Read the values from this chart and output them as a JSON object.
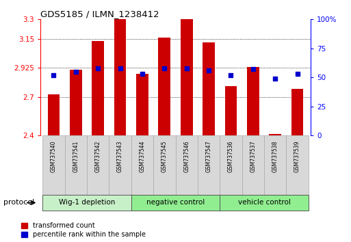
{
  "title": "GDS5185 / ILMN_1238412",
  "samples": [
    "GSM737540",
    "GSM737541",
    "GSM737542",
    "GSM737543",
    "GSM737544",
    "GSM737545",
    "GSM737546",
    "GSM737547",
    "GSM737536",
    "GSM737537",
    "GSM737538",
    "GSM737539"
  ],
  "red_values": [
    2.72,
    2.91,
    3.13,
    3.3,
    2.88,
    3.16,
    3.3,
    3.12,
    2.78,
    2.93,
    2.41,
    2.76
  ],
  "blue_values": [
    52,
    55,
    58,
    58,
    53,
    58,
    58,
    56,
    52,
    57,
    49,
    53
  ],
  "groups": [
    {
      "label": "Wig-1 depletion",
      "start": 0,
      "end": 3,
      "color": "#c8f0c8"
    },
    {
      "label": "negative control",
      "start": 4,
      "end": 7,
      "color": "#90ee90"
    },
    {
      "label": "vehicle control",
      "start": 8,
      "end": 11,
      "color": "#90ee90"
    }
  ],
  "ylim_left": [
    2.4,
    3.3
  ],
  "ylim_right": [
    0,
    100
  ],
  "yticks_left": [
    2.4,
    2.7,
    2.925,
    3.15,
    3.3
  ],
  "ytick_labels_left": [
    "2.4",
    "2.7",
    "2.925",
    "3.15",
    "3.3"
  ],
  "yticks_right": [
    0,
    25,
    50,
    75,
    100
  ],
  "ytick_labels_right": [
    "0",
    "25",
    "50",
    "75",
    "100%"
  ],
  "bar_color": "#cc0000",
  "dot_color": "#0000cc",
  "bar_width": 0.55,
  "protocol_label": "protocol",
  "legend_red": "transformed count",
  "legend_blue": "percentile rank within the sample",
  "hgrid_ticks": [
    2.7,
    2.925,
    3.15
  ],
  "group_colors": [
    "#c8f0c8",
    "#90ee90",
    "#90ee90"
  ]
}
